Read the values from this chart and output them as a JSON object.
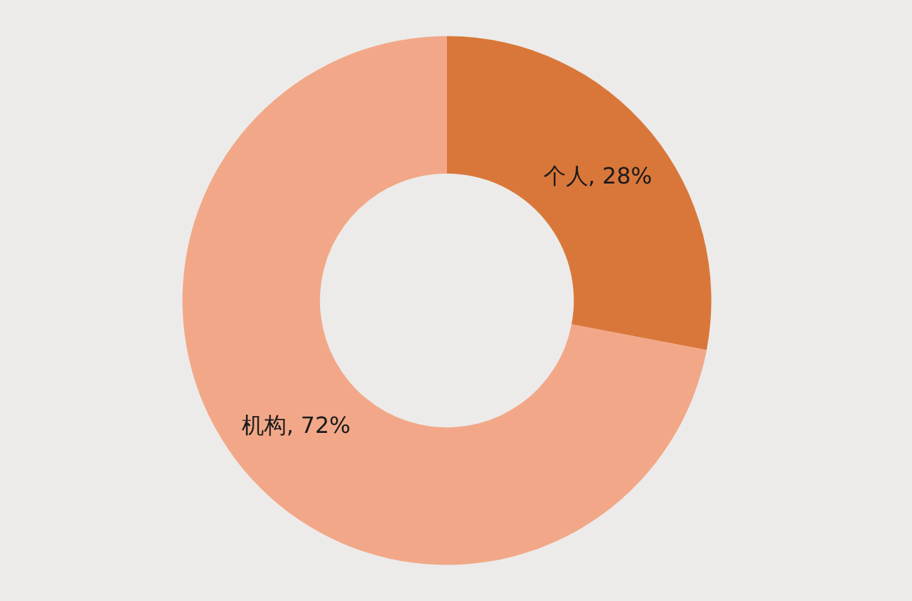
{
  "chart_data": {
    "type": "donut",
    "categories": [
      "个人",
      "机构"
    ],
    "values": [
      28,
      72
    ],
    "value_labels": [
      "28%",
      "72%"
    ],
    "colors": [
      "#d9773a",
      "#f2a888"
    ],
    "legend": false
  }
}
